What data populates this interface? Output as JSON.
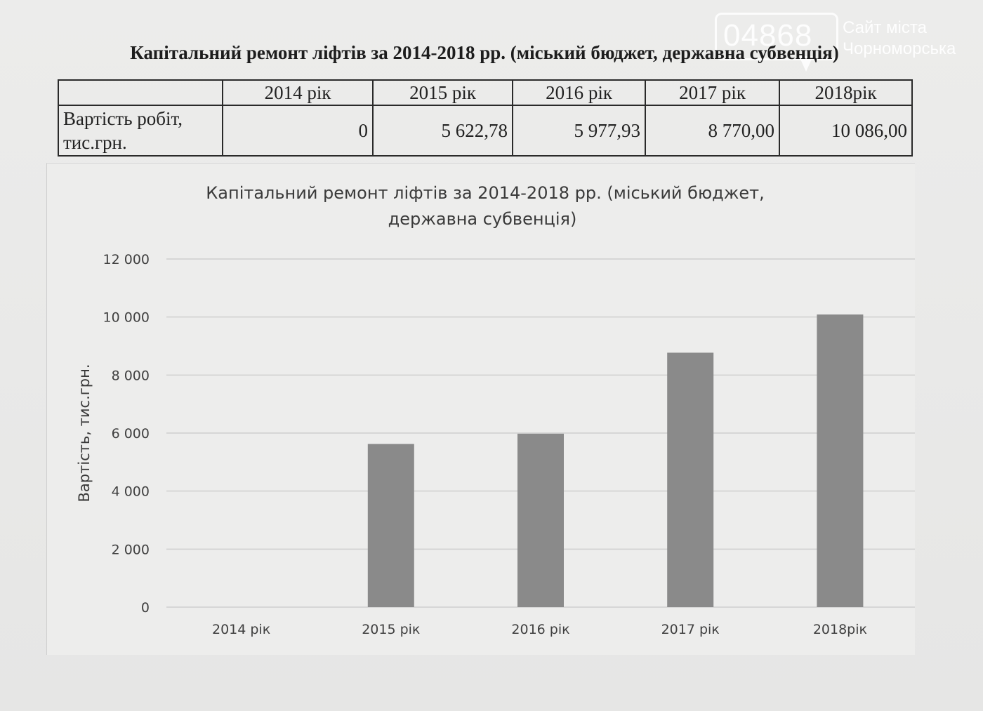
{
  "watermark": {
    "number": "04868",
    "line1": "Сайт міста",
    "line2": "Чорноморська"
  },
  "document_title": "Капітальний ремонт ліфтів за 2014-2018 рр. (міський бюджет, державна субвенція)",
  "table": {
    "headers": [
      "",
      "2014 рік",
      "2015 рік",
      "2016 рік",
      "2017 рік",
      "2018рік"
    ],
    "row_label_line1": "Вартість робіт,",
    "row_label_line2": "тис.грн.",
    "values": [
      "0",
      "5 622,78",
      "5 977,93",
      "8 770,00",
      "10 086,00"
    ]
  },
  "chart_data": {
    "type": "bar",
    "title_line1": "Капітальний ремонт ліфтів за 2014-2018 рр. (міський бюджет,",
    "title_line2": "державна субвенція)",
    "categories": [
      "2014 рік",
      "2015 рік",
      "2016 рік",
      "2017 рік",
      "2018рік"
    ],
    "values": [
      0,
      5622.78,
      5977.93,
      8770.0,
      10086.0
    ],
    "ylabel": "Вартість, тис.грн.",
    "xlabel": "",
    "ylim": [
      0,
      12000
    ],
    "yticks": [
      0,
      2000,
      4000,
      6000,
      8000,
      10000,
      12000
    ],
    "ytick_labels": [
      "0",
      "2 000",
      "4 000",
      "6 000",
      "8 000",
      "10 000",
      "12 000"
    ],
    "grid": true,
    "bar_color": "#8a8a8a",
    "legend": "none"
  }
}
